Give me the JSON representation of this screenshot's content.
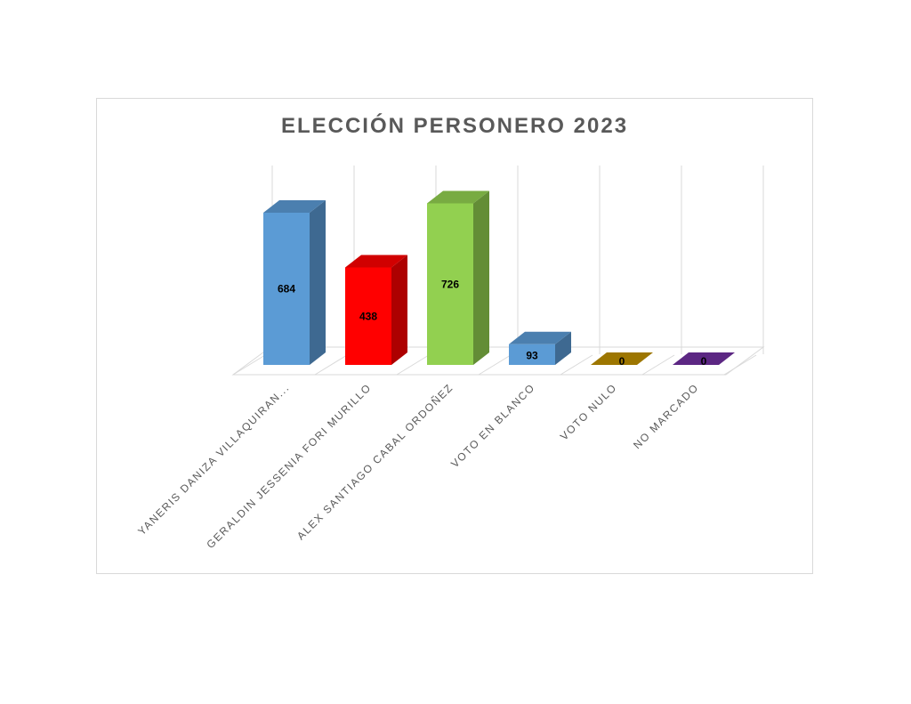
{
  "chart_data": {
    "type": "bar",
    "title": "ELECCIÓN  PERSONERO  2023",
    "categories": [
      "YANERIS DANIZA VILLAQUIRAN...",
      "GERALDIN JESSENIA FORI MURILLO",
      "ALEX SANTIAGO CABAL ORDOÑEZ",
      "VOTO EN BLANCO",
      "VOTO NULO",
      "NO MARCADO"
    ],
    "values": [
      684,
      438,
      726,
      93,
      0,
      0
    ],
    "data_labels": [
      "684",
      "438",
      "726",
      "93",
      "0",
      "0"
    ],
    "colors": [
      "#5B9BD5",
      "#FF0000",
      "#92D050",
      "#5B9BD5",
      "#BF9000",
      "#7030A0"
    ],
    "xlabel": "",
    "ylabel": "",
    "grid": true,
    "style": "3d-column"
  }
}
